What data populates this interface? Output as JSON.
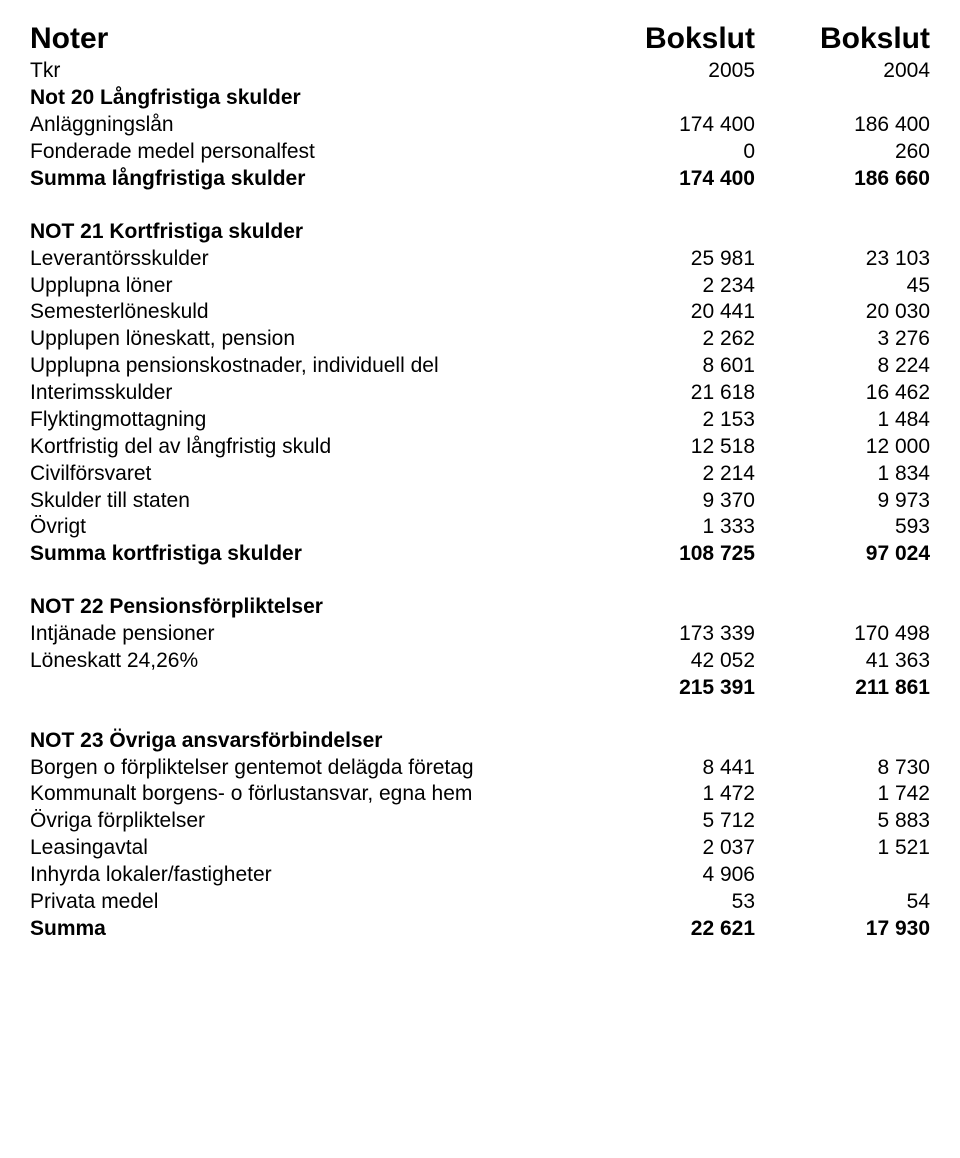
{
  "header": {
    "title": "Noter",
    "col1": "Bokslut",
    "col2": "Bokslut",
    "sub_label": "Tkr",
    "sub_col1": "2005",
    "sub_col2": "2004"
  },
  "not20": {
    "heading": "Not 20  Långfristiga skulder",
    "rows": [
      {
        "label": "Anläggningslån",
        "v1": "174 400",
        "v2": "186 400"
      },
      {
        "label": "Fonderade medel personalfest",
        "v1": "0",
        "v2": "260"
      }
    ],
    "sum": {
      "label": "Summa långfristiga skulder",
      "v1": "174 400",
      "v2": "186 660"
    }
  },
  "not21": {
    "heading": "NOT 21 Kortfristiga skulder",
    "rows": [
      {
        "label": "Leverantörsskulder",
        "v1": "25 981",
        "v2": "23 103"
      },
      {
        "label": "Upplupna löner",
        "v1": "2 234",
        "v2": "45"
      },
      {
        "label": "Semesterlöneskuld",
        "v1": "20 441",
        "v2": "20 030"
      },
      {
        "label": "Upplupen löneskatt, pension",
        "v1": "2 262",
        "v2": "3 276"
      },
      {
        "label": "Upplupna pensionskostnader, individuell del",
        "v1": "8 601",
        "v2": "8 224"
      },
      {
        "label": "Interimsskulder",
        "v1": "21 618",
        "v2": "16 462"
      },
      {
        "label": "Flyktingmottagning",
        "v1": "2 153",
        "v2": "1 484"
      },
      {
        "label": "Kortfristig del av långfristig skuld",
        "v1": "12 518",
        "v2": "12 000"
      },
      {
        "label": "Civilförsvaret",
        "v1": "2 214",
        "v2": "1 834"
      },
      {
        "label": "Skulder till staten",
        "v1": "9 370",
        "v2": "9 973"
      },
      {
        "label": "Övrigt",
        "v1": "1 333",
        "v2": "593"
      }
    ],
    "sum": {
      "label": "Summa kortfristiga skulder",
      "v1": "108 725",
      "v2": "97 024"
    }
  },
  "not22": {
    "heading": "NOT 22 Pensionsförpliktelser",
    "rows": [
      {
        "label": "Intjänade pensioner",
        "v1": "173 339",
        "v2": "170 498"
      },
      {
        "label": "Löneskatt 24,26%",
        "v1": "42 052",
        "v2": "41 363"
      }
    ],
    "total": {
      "label": "",
      "v1": "215 391",
      "v2": "211 861"
    }
  },
  "not23": {
    "heading": "NOT 23 Övriga ansvarsförbindelser",
    "rows": [
      {
        "label": "Borgen o förpliktelser gentemot delägda företag",
        "v1": "8 441",
        "v2": "8 730"
      },
      {
        "label": "Kommunalt borgens- o förlustansvar, egna hem",
        "v1": "1 472",
        "v2": "1 742"
      },
      {
        "label": "Övriga förpliktelser",
        "v1": "5 712",
        "v2": "5 883"
      },
      {
        "label": "Leasingavtal",
        "v1": "2 037",
        "v2": "1 521"
      },
      {
        "label": "Inhyrda lokaler/fastigheter",
        "v1": "4 906",
        "v2": ""
      },
      {
        "label": "Privata medel",
        "v1": "53",
        "v2": "54"
      }
    ],
    "sum": {
      "label": "Summa",
      "v1": "22 621",
      "v2": "17 930"
    }
  }
}
